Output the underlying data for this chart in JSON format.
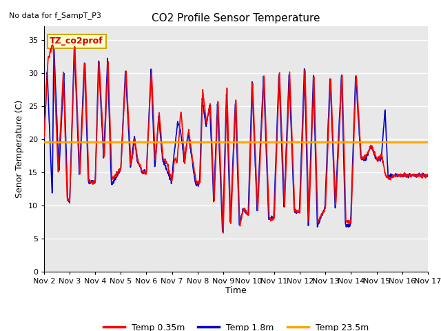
{
  "title": "CO2 Profile Sensor Temperature",
  "top_left_text": "No data for f_SampT_P3",
  "ylabel": "Senor Temperature (C)",
  "xlabel": "Time",
  "annotation_box": "TZ_co2prof",
  "annotation_box_bg": "#ffffcc",
  "annotation_box_border": "#ccaa00",
  "ylim": [
    0,
    37
  ],
  "yticks": [
    0,
    5,
    10,
    15,
    20,
    25,
    30,
    35
  ],
  "plot_bg": "#e8e8e8",
  "fig_bg": "#ffffff",
  "grid_color": "#ffffff",
  "horizontal_line_y": 19.5,
  "horizontal_line_color": "#FFA500",
  "legend_labels": [
    "Temp 0.35m",
    "Temp 1.8m",
    "Temp 23.5m"
  ],
  "legend_colors": [
    "#ff0000",
    "#0000cc",
    "#FFA500"
  ],
  "line_width": 1.2,
  "xtick_labels": [
    "Nov 2",
    "Nov 3",
    "Nov 4",
    "Nov 5",
    "Nov 6",
    "Nov 7",
    "Nov 8",
    "Nov 9",
    "Nov 10",
    "Nov 11",
    "Nov 12",
    "Nov 13",
    "Nov 14",
    "Nov 15",
    "Nov 16",
    "Nov 17"
  ],
  "num_days": 15
}
